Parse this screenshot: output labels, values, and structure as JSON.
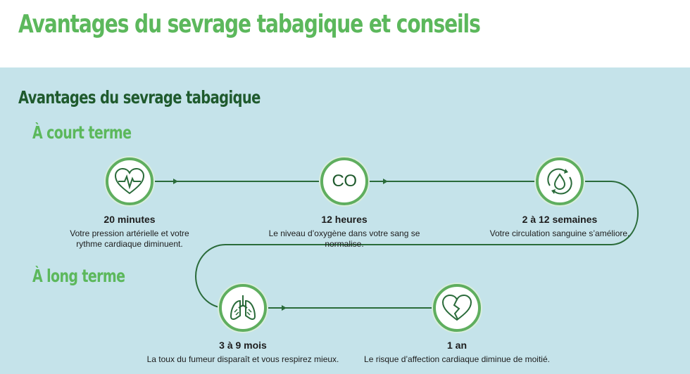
{
  "title": "Avantages du sevrage tabagique et conseils",
  "section_title": "Avantages du sevrage tabagique",
  "short_term": {
    "heading": "À court terme",
    "milestones": [
      {
        "title": "20 minutes",
        "description": "Votre pression artérielle et votre rythme cardiaque diminuent.",
        "icon": "heart-rate-icon"
      },
      {
        "title": "12 heures",
        "description": "Le niveau d’oxygène dans votre sang se normalise.",
        "icon": "co-icon",
        "icon_text": "CO"
      },
      {
        "title": "2 à 12 semaines",
        "description": "Votre circulation sanguine s’améliore.",
        "icon": "circulation-drop-icon"
      }
    ]
  },
  "long_term": {
    "heading": "À long terme",
    "milestones": [
      {
        "title": "3 à 9 mois",
        "description": "La toux du fumeur disparaît et vous respirez mieux.",
        "icon": "lungs-icon"
      },
      {
        "title": "1 an",
        "description": "Le risque d’affection cardiaque diminue de moitié.",
        "icon": "broken-heart-icon"
      }
    ]
  },
  "colors": {
    "accent_green": "#5cb85c",
    "dark_green": "#1f5a2d",
    "panel_blue": "#c5e3ea",
    "line": "#2a6b3a"
  }
}
